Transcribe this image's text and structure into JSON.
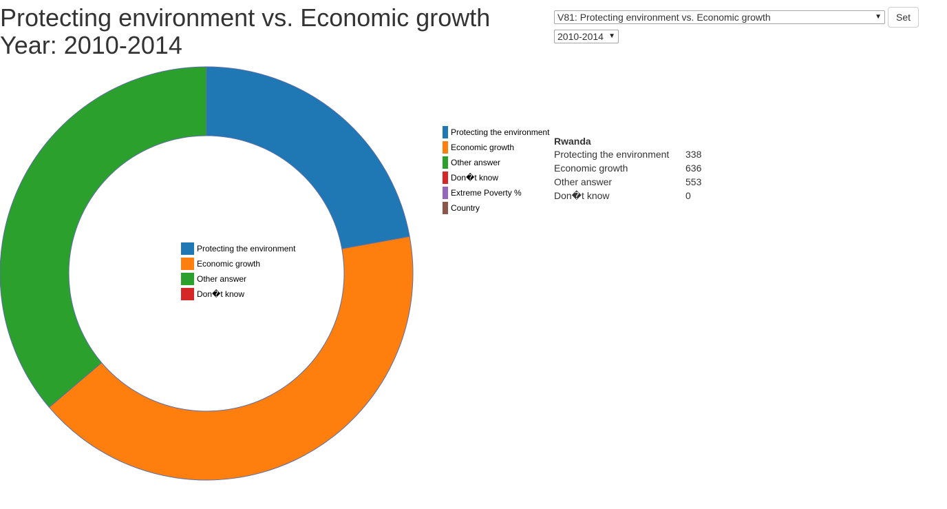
{
  "page": {
    "title_line1": "Protecting environment vs. Economic growth",
    "title_line2": "Year: 2010-2014"
  },
  "controls": {
    "question_select": "V81: Protecting environment vs. Economic growth",
    "year_select": "2010-2014",
    "set_label": "Set"
  },
  "side_legend": [
    {
      "label": "Protecting the environment",
      "color": "#1f77b4"
    },
    {
      "label": "Economic growth",
      "color": "#ff7f0e"
    },
    {
      "label": "Other answer",
      "color": "#2ca02c"
    },
    {
      "label": "Don�t know",
      "color": "#d62728"
    },
    {
      "label": "Extreme Poverty %",
      "color": "#9467bd"
    },
    {
      "label": "Country",
      "color": "#8c564b"
    }
  ],
  "info": {
    "country": "Rwanda",
    "rows": [
      {
        "label": "Protecting the environment",
        "value": "338"
      },
      {
        "label": "Economic growth",
        "value": "636"
      },
      {
        "label": "Other answer",
        "value": "553"
      },
      {
        "label": "Don�t know",
        "value": "0"
      }
    ]
  },
  "chart_data": {
    "type": "pie",
    "donut": true,
    "categories": [
      "Protecting the environment",
      "Economic growth",
      "Other answer",
      "Don�t know"
    ],
    "values": [
      338,
      636,
      553,
      0
    ],
    "colors": [
      "#1f77b4",
      "#ff7f0e",
      "#2ca02c",
      "#d62728"
    ],
    "legend_position": "center"
  }
}
